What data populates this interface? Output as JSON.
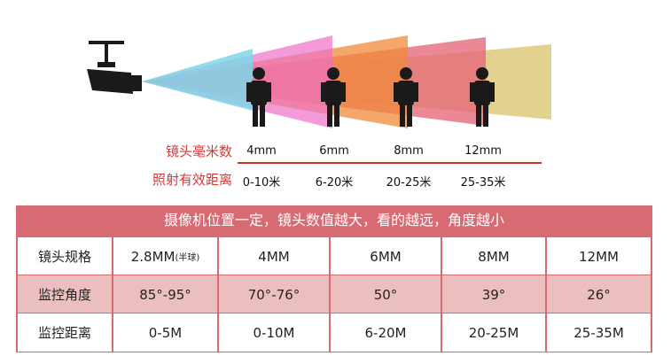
{
  "top": {
    "lens_label": "镜头毫米数",
    "distance_label": "照射有效距离",
    "lenses": [
      "4mm",
      "6mm",
      "8mm",
      "12mm"
    ],
    "distances": [
      "0-10米",
      "6-20米",
      "20-25米",
      "25-35米"
    ]
  },
  "table": {
    "banner": "摄像机位置一定，镜头数值越大，看的越远，角度越小",
    "rows": [
      {
        "label": "镜头规格",
        "values": [
          "2.8MM",
          "4MM",
          "6MM",
          "8MM",
          "12MM"
        ],
        "note": "(半球)"
      },
      {
        "label": "监控角度",
        "values": [
          "85°-95°",
          "70°-76°",
          "50°",
          "39°",
          "26°"
        ]
      },
      {
        "label": "监控距离",
        "values": [
          "0-5M",
          "0-10M",
          "6-20M",
          "20-25M",
          "25-35M"
        ]
      }
    ]
  },
  "colors": {
    "accent": "#d86a73",
    "label_red": "#d23a3a",
    "row_pink": "#ebbfbf"
  }
}
